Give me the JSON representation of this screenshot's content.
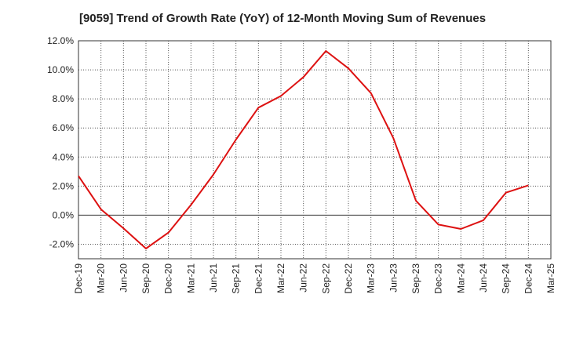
{
  "chart_data": {
    "type": "line",
    "title": "[9059]  Trend of Growth Rate (YoY) of 12-Month Moving Sum of Revenues",
    "xlabel": "",
    "ylabel": "",
    "ylim": [
      -3.0,
      12.0
    ],
    "y_ticks": [
      "12.0%",
      "10.0%",
      "8.0%",
      "6.0%",
      "4.0%",
      "2.0%",
      "0.0%",
      "-2.0%"
    ],
    "y_tick_values": [
      12,
      10,
      8,
      6,
      4,
      2,
      0,
      -2
    ],
    "x_ticks": [
      "Dec-19",
      "Mar-20",
      "Jun-20",
      "Sep-20",
      "Dec-20",
      "Mar-21",
      "Jun-21",
      "Sep-21",
      "Dec-21",
      "Mar-22",
      "Jun-22",
      "Sep-22",
      "Dec-22",
      "Mar-23",
      "Jun-23",
      "Sep-23",
      "Dec-23",
      "Mar-24",
      "Jun-24",
      "Sep-24",
      "Dec-24",
      "Mar-25"
    ],
    "grid": true,
    "line_color": "#dd1111",
    "series": [
      {
        "x": [
          "Dec-19",
          "Mar-20",
          "Jun-20",
          "Sep-20",
          "Dec-20",
          "Mar-21",
          "Jun-21",
          "Sep-21",
          "Dec-21",
          "Mar-22",
          "Jun-22",
          "Sep-22",
          "Dec-22",
          "Mar-23",
          "Jun-23",
          "Sep-23",
          "Dec-23",
          "Mar-24",
          "Jun-24",
          "Sep-24",
          "Dec-24"
        ],
        "values": [
          2.7,
          0.4,
          -0.9,
          -2.3,
          -1.2,
          0.7,
          2.8,
          5.2,
          7.4,
          8.2,
          9.5,
          11.3,
          10.1,
          8.4,
          5.3,
          1.0,
          -0.65,
          -0.95,
          -0.35,
          1.55,
          2.05
        ]
      }
    ]
  }
}
